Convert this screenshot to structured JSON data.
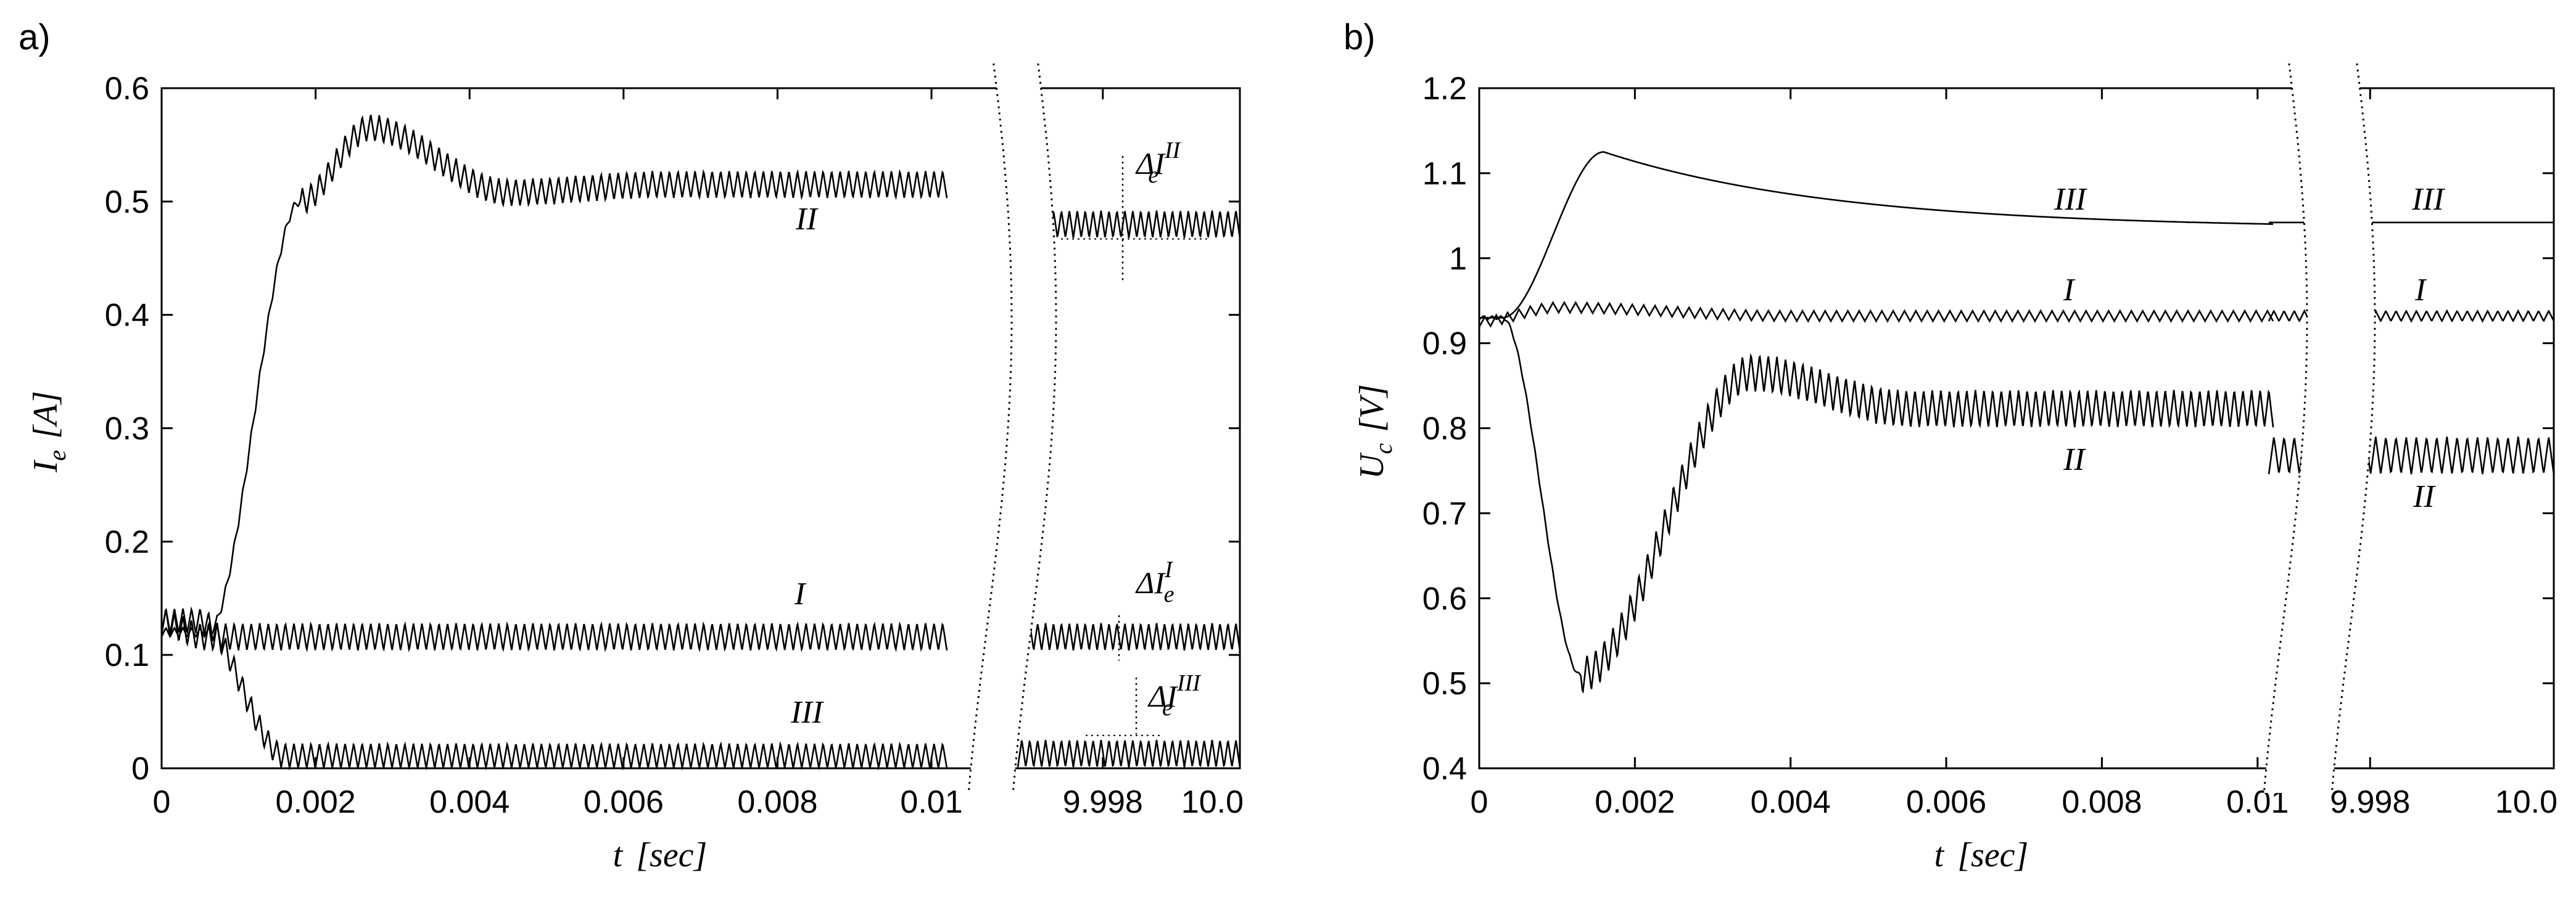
{
  "figure": {
    "panels": [
      "a)",
      "b)"
    ]
  },
  "chart_data": [
    {
      "type": "line",
      "panel": "a)",
      "title": "",
      "ylabel": {
        "base": "I",
        "sub": "e",
        "unit": "[A]"
      },
      "xlabel": {
        "base": "t",
        "unit": "[sec]"
      },
      "ylim": [
        0,
        0.6
      ],
      "yticks": [
        0,
        0.1,
        0.2,
        0.3,
        0.4,
        0.5,
        0.6
      ],
      "ytick_labels": [
        "0",
        "0.1",
        "0.2",
        "0.3",
        "0.4",
        "0.5",
        "0.6"
      ],
      "x_segments": [
        {
          "range": [
            0,
            0.0102
          ],
          "ticks": [
            0,
            0.002,
            0.004,
            0.006,
            0.008,
            0.01
          ],
          "labels": [
            "0",
            "0.002",
            "0.004",
            "0.006",
            "0.008",
            "0.01"
          ]
        },
        {
          "range": [
            9.9973,
            10.0
          ],
          "ticks": [
            9.998,
            10.0
          ],
          "labels": [
            "9.998",
            "10.0"
          ]
        }
      ],
      "axis_break": true,
      "series": [
        {
          "name": "I",
          "label": "I",
          "start": 0.13,
          "steady": 0.116,
          "ripple": 0.012,
          "steady_late": 0.116,
          "ripple_late": 0.012,
          "cycles": 92
        },
        {
          "name": "II",
          "label": "II",
          "start": 0.12,
          "rise_start": 0.0006,
          "rise_end": 0.0018,
          "peak": 0.565,
          "peak_t": 0.0027,
          "steady": 0.515,
          "ripple": 0.012,
          "steady_late": 0.48,
          "ripple_late": 0.012,
          "cycles": 92
        },
        {
          "name": "III",
          "label": "III",
          "start": 0.13,
          "fall_end": 0.0016,
          "steady": 0.011,
          "ripple": 0.011,
          "steady_late": 0.013,
          "ripple_late": 0.012,
          "cycles": 92
        }
      ],
      "annotations": [
        {
          "text": "ΔI",
          "sub": "e",
          "sup": "II"
        },
        {
          "text": "ΔI",
          "sub": "e",
          "sup": "I"
        },
        {
          "text": "ΔI",
          "sub": "e",
          "sup": "III"
        }
      ]
    },
    {
      "type": "line",
      "panel": "b)",
      "title": "",
      "ylabel": {
        "base": "U",
        "sub": "c",
        "unit": "[V]"
      },
      "xlabel": {
        "base": "t",
        "unit": "[sec]"
      },
      "ylim": [
        0.4,
        1.2
      ],
      "yticks": [
        0.4,
        0.5,
        0.6,
        0.7,
        0.8,
        0.9,
        1.0,
        1.1,
        1.2
      ],
      "ytick_labels": [
        "0.4",
        "0.5",
        "0.6",
        "0.7",
        "0.8",
        "0.9",
        "1",
        "1.1",
        "1.2"
      ],
      "x_segments": [
        {
          "range": [
            0,
            0.0102
          ],
          "ticks": [
            0,
            0.002,
            0.004,
            0.006,
            0.008,
            0.01
          ],
          "labels": [
            "0",
            "0.002",
            "0.004",
            "0.006",
            "0.008",
            "0.01"
          ]
        },
        {
          "range": [
            9.9973,
            10.0
          ],
          "ticks": [
            9.998,
            10.0
          ],
          "labels": [
            "9.998",
            "10.0"
          ]
        }
      ],
      "axis_break": true,
      "series": [
        {
          "name": "I",
          "label": "I",
          "start": 0.925,
          "steady": 0.932,
          "ripple": 0.006,
          "steady_late": 0.932,
          "ripple_late": 0.006,
          "cycles": 70
        },
        {
          "name": "II",
          "label": "II",
          "start": 0.93,
          "min": 0.51,
          "min_t": 0.0013,
          "peak": 0.865,
          "peak_t": 0.0035,
          "steady": 0.823,
          "ripple": 0.022,
          "steady_late": 0.768,
          "ripple_late": 0.022,
          "cycles": 92
        },
        {
          "name": "III",
          "label": "III",
          "start": 0.93,
          "peak": 1.125,
          "peak_t": 0.0016,
          "steady": 1.035,
          "ripple": 0.001,
          "steady_late": 1.042,
          "ripple_late": 0.001,
          "cycles": 0
        }
      ],
      "annotations": []
    }
  ]
}
